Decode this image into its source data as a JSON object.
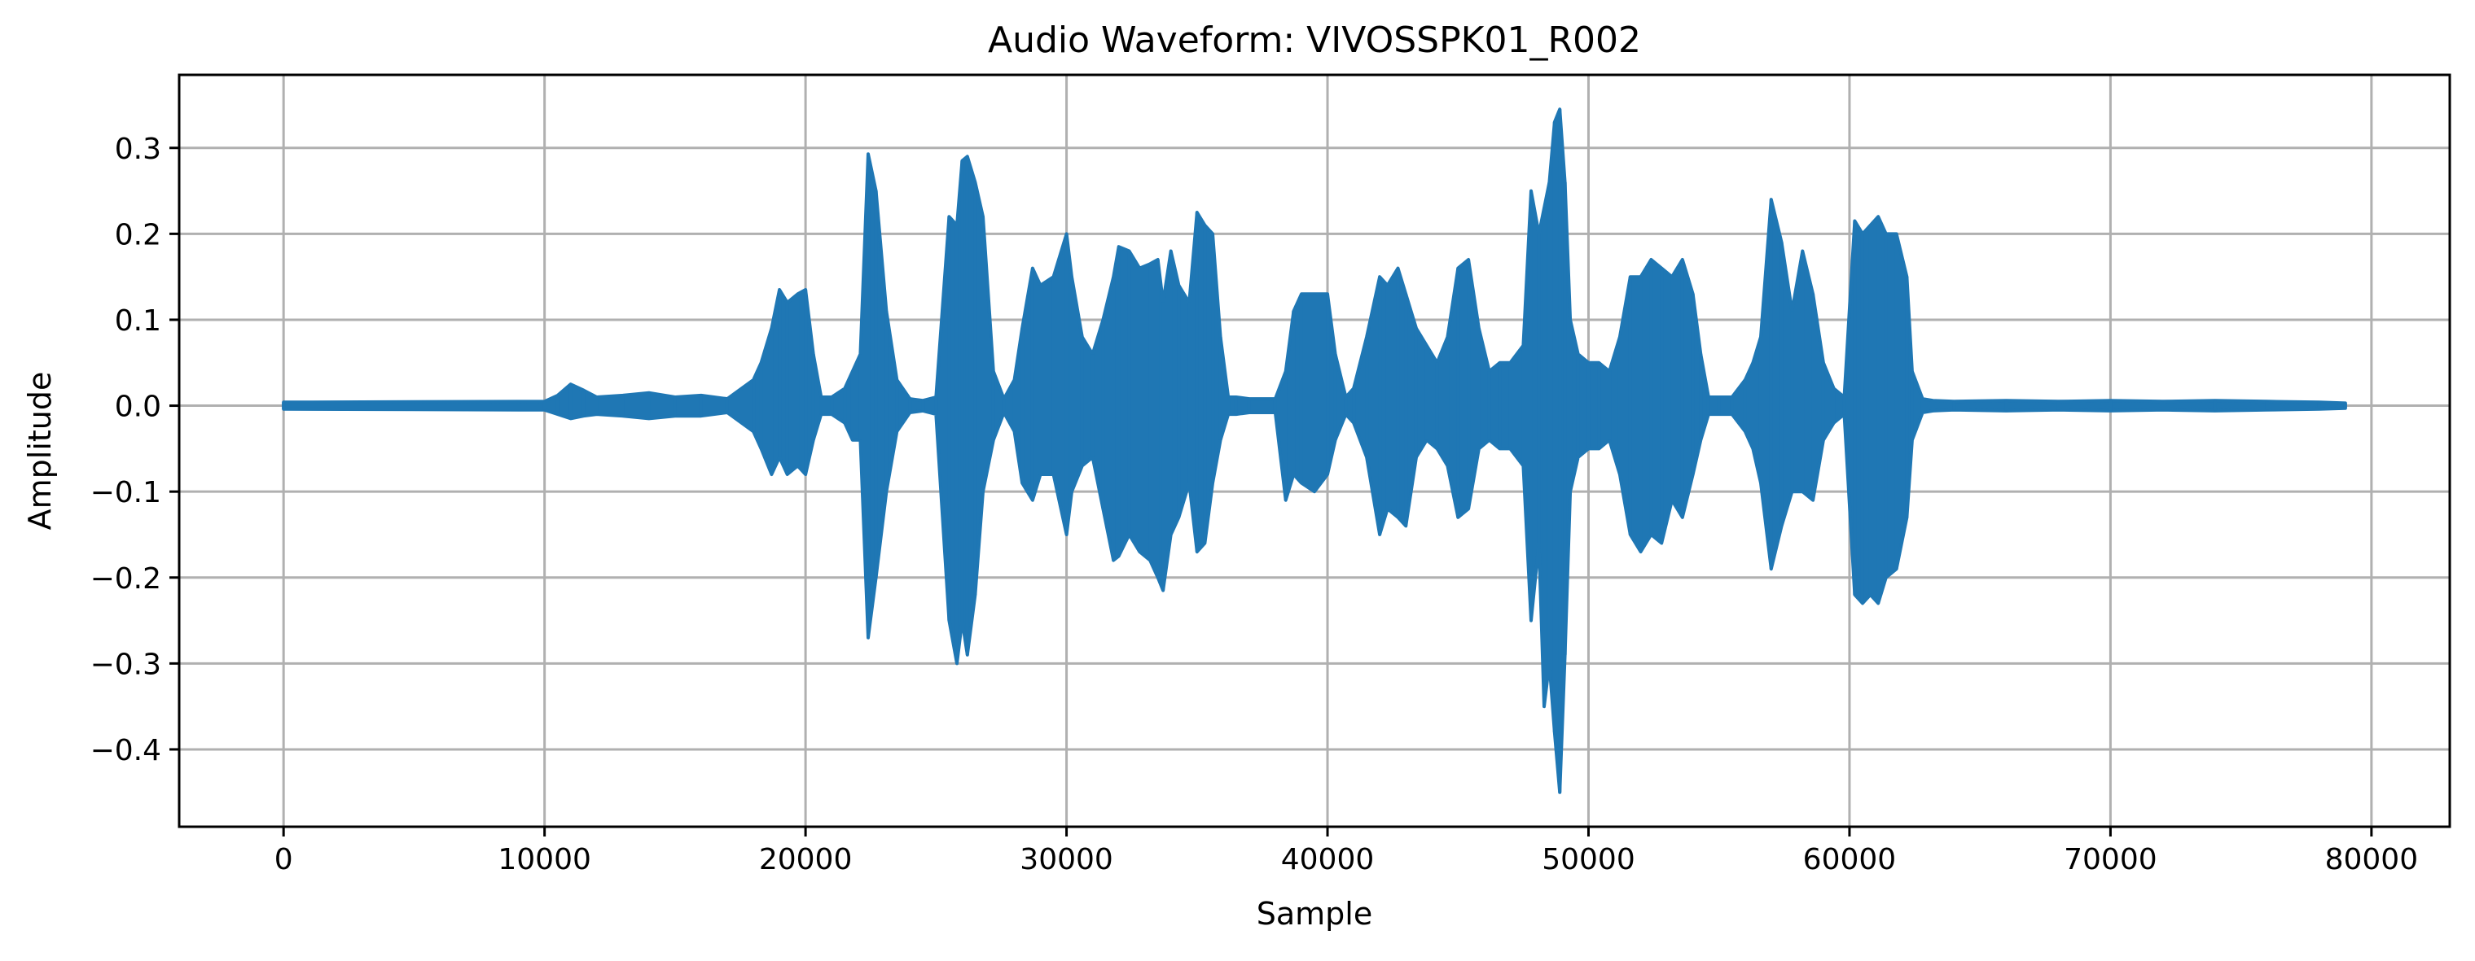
{
  "chart_data": {
    "type": "line",
    "title": "Audio Waveform: VIVOSSPK01_R002",
    "xlabel": "Sample",
    "ylabel": "Amplitude",
    "xlim": [
      -4000,
      83000
    ],
    "ylim": [
      -0.49,
      0.385
    ],
    "x_ticks": [
      0,
      10000,
      20000,
      30000,
      40000,
      50000,
      60000,
      70000,
      80000
    ],
    "x_tick_labels": [
      "0",
      "10000",
      "20000",
      "30000",
      "40000",
      "50000",
      "60000",
      "70000",
      "80000"
    ],
    "y_ticks": [
      0.3,
      0.2,
      0.1,
      0.0,
      -0.1,
      -0.2,
      -0.3,
      -0.4
    ],
    "y_tick_labels": [
      "0.3",
      "0.2",
      "0.1",
      "0.0",
      "−0.1",
      "−0.2",
      "−0.3",
      "−0.4"
    ],
    "grid": true,
    "line_color": "#1f77b4",
    "series": [
      {
        "x": [
          0,
          10000,
          10500,
          11000,
          11500,
          12000,
          13000,
          14000,
          15000,
          16000,
          17000,
          18000,
          18300,
          18700,
          19000,
          19300,
          19700,
          20000,
          20300,
          20600,
          21000,
          21500,
          21800,
          22100,
          22400,
          22700,
          23100,
          23500,
          24000,
          24500,
          25000,
          25500,
          25800,
          26000,
          26200,
          26500,
          26800,
          27200,
          27600,
          28000,
          28300,
          28700,
          29000,
          29500,
          30000,
          30200,
          30600,
          31000,
          31400,
          31800,
          32000,
          32400,
          32800,
          33200,
          33500,
          33700,
          34000,
          34300,
          34700,
          35000,
          35300,
          35600,
          35900,
          36200,
          36500,
          37000,
          38000,
          38400,
          38700,
          39000,
          39500,
          40000,
          40300,
          40700,
          41000,
          41500,
          42000,
          42300,
          42700,
          43000,
          43400,
          43800,
          44200,
          44600,
          45000,
          45400,
          45800,
          46200,
          46600,
          47000,
          47500,
          47800,
          48100,
          48300,
          48500,
          48700,
          48900,
          49100,
          49300,
          49600,
          50000,
          50400,
          50800,
          51200,
          51600,
          52000,
          52400,
          52800,
          53200,
          53600,
          54000,
          54300,
          54600,
          55000,
          55500,
          56000,
          56300,
          56600,
          57000,
          57400,
          57800,
          58200,
          58600,
          59000,
          59400,
          59800,
          60200,
          60500,
          60800,
          61100,
          61400,
          61800,
          62200,
          62400,
          62800,
          63200,
          64000,
          66000,
          68000,
          70000,
          72000,
          74000,
          76000,
          78000,
          79000
        ],
        "upper": [
          0.004,
          0.005,
          0.012,
          0.025,
          0.018,
          0.01,
          0.012,
          0.015,
          0.01,
          0.012,
          0.008,
          0.03,
          0.05,
          0.09,
          0.135,
          0.12,
          0.13,
          0.135,
          0.06,
          0.01,
          0.01,
          0.02,
          0.04,
          0.06,
          0.293,
          0.25,
          0.11,
          0.03,
          0.008,
          0.006,
          0.01,
          0.22,
          0.21,
          0.285,
          0.29,
          0.26,
          0.22,
          0.04,
          0.008,
          0.03,
          0.09,
          0.16,
          0.14,
          0.15,
          0.2,
          0.15,
          0.08,
          0.06,
          0.1,
          0.15,
          0.185,
          0.18,
          0.16,
          0.165,
          0.17,
          0.12,
          0.18,
          0.14,
          0.12,
          0.225,
          0.21,
          0.2,
          0.08,
          0.01,
          0.01,
          0.008,
          0.008,
          0.04,
          0.11,
          0.13,
          0.13,
          0.13,
          0.06,
          0.01,
          0.02,
          0.08,
          0.15,
          0.14,
          0.16,
          0.13,
          0.09,
          0.07,
          0.05,
          0.08,
          0.16,
          0.17,
          0.09,
          0.04,
          0.05,
          0.05,
          0.07,
          0.25,
          0.2,
          0.23,
          0.26,
          0.33,
          0.345,
          0.26,
          0.1,
          0.06,
          0.05,
          0.05,
          0.04,
          0.08,
          0.15,
          0.15,
          0.17,
          0.16,
          0.15,
          0.17,
          0.13,
          0.06,
          0.01,
          0.01,
          0.01,
          0.03,
          0.05,
          0.08,
          0.24,
          0.19,
          0.11,
          0.18,
          0.13,
          0.05,
          0.02,
          0.01,
          0.215,
          0.2,
          0.21,
          0.22,
          0.2,
          0.2,
          0.15,
          0.04,
          0.008,
          0.006,
          0.005,
          0.006,
          0.005,
          0.006,
          0.005,
          0.006,
          0.005,
          0.004,
          0.003
        ],
        "lower": [
          -0.004,
          -0.005,
          -0.01,
          -0.015,
          -0.012,
          -0.01,
          -0.012,
          -0.015,
          -0.012,
          -0.012,
          -0.008,
          -0.03,
          -0.05,
          -0.08,
          -0.06,
          -0.08,
          -0.07,
          -0.08,
          -0.04,
          -0.01,
          -0.01,
          -0.02,
          -0.04,
          -0.04,
          -0.27,
          -0.2,
          -0.1,
          -0.03,
          -0.008,
          -0.006,
          -0.01,
          -0.25,
          -0.3,
          -0.25,
          -0.29,
          -0.22,
          -0.1,
          -0.04,
          -0.008,
          -0.03,
          -0.09,
          -0.11,
          -0.08,
          -0.08,
          -0.15,
          -0.1,
          -0.07,
          -0.06,
          -0.12,
          -0.18,
          -0.175,
          -0.15,
          -0.17,
          -0.18,
          -0.2,
          -0.215,
          -0.15,
          -0.13,
          -0.09,
          -0.17,
          -0.16,
          -0.09,
          -0.04,
          -0.01,
          -0.01,
          -0.008,
          -0.008,
          -0.11,
          -0.08,
          -0.09,
          -0.1,
          -0.08,
          -0.04,
          -0.01,
          -0.02,
          -0.06,
          -0.15,
          -0.12,
          -0.13,
          -0.14,
          -0.06,
          -0.04,
          -0.05,
          -0.07,
          -0.13,
          -0.12,
          -0.05,
          -0.04,
          -0.05,
          -0.05,
          -0.07,
          -0.25,
          -0.16,
          -0.35,
          -0.3,
          -0.38,
          -0.45,
          -0.29,
          -0.1,
          -0.06,
          -0.05,
          -0.05,
          -0.04,
          -0.08,
          -0.15,
          -0.17,
          -0.15,
          -0.16,
          -0.11,
          -0.13,
          -0.08,
          -0.04,
          -0.01,
          -0.01,
          -0.01,
          -0.03,
          -0.05,
          -0.09,
          -0.19,
          -0.14,
          -0.1,
          -0.1,
          -0.11,
          -0.04,
          -0.02,
          -0.01,
          -0.22,
          -0.23,
          -0.22,
          -0.23,
          -0.2,
          -0.19,
          -0.13,
          -0.04,
          -0.008,
          -0.006,
          -0.005,
          -0.006,
          -0.005,
          -0.006,
          -0.005,
          -0.006,
          -0.005,
          -0.004,
          -0.003
        ]
      }
    ]
  }
}
